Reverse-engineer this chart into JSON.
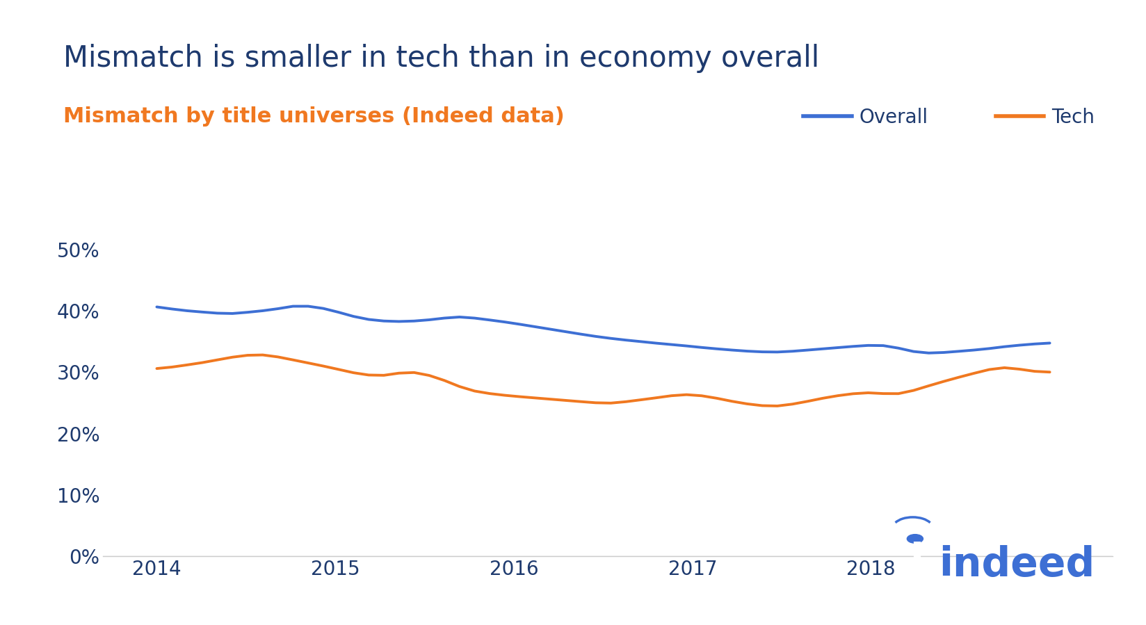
{
  "title": "Mismatch is smaller in tech than in economy overall",
  "subtitle": "Mismatch by title universes (Indeed data)",
  "title_color": "#1e3a6e",
  "subtitle_color": "#f07820",
  "background_color": "#ffffff",
  "overall_color": "#3d6fd4",
  "tech_color": "#f07820",
  "legend_labels": [
    "Overall",
    "Tech"
  ],
  "x_label_years": [
    "2014",
    "2015",
    "2016",
    "2017",
    "2018"
  ],
  "ylim": [
    0,
    0.55
  ],
  "yticks": [
    0.0,
    0.1,
    0.2,
    0.3,
    0.4,
    0.5
  ],
  "overall_y": [
    0.408,
    0.402,
    0.4,
    0.398,
    0.396,
    0.394,
    0.398,
    0.4,
    0.402,
    0.41,
    0.408,
    0.405,
    0.398,
    0.39,
    0.385,
    0.383,
    0.382,
    0.383,
    0.385,
    0.388,
    0.392,
    0.388,
    0.385,
    0.382,
    0.378,
    0.374,
    0.37,
    0.366,
    0.362,
    0.358,
    0.355,
    0.352,
    0.35,
    0.347,
    0.345,
    0.343,
    0.34,
    0.338,
    0.336,
    0.334,
    0.333,
    0.332,
    0.334,
    0.336,
    0.338,
    0.34,
    0.342,
    0.344,
    0.345,
    0.34,
    0.332,
    0.33,
    0.332,
    0.334,
    0.336,
    0.338,
    0.342,
    0.344,
    0.346,
    0.348
  ],
  "tech_y": [
    0.305,
    0.308,
    0.312,
    0.315,
    0.32,
    0.325,
    0.328,
    0.33,
    0.325,
    0.32,
    0.315,
    0.31,
    0.305,
    0.298,
    0.295,
    0.292,
    0.3,
    0.302,
    0.295,
    0.288,
    0.275,
    0.268,
    0.265,
    0.262,
    0.26,
    0.258,
    0.256,
    0.254,
    0.252,
    0.25,
    0.248,
    0.252,
    0.255,
    0.258,
    0.262,
    0.265,
    0.262,
    0.258,
    0.252,
    0.248,
    0.245,
    0.243,
    0.248,
    0.252,
    0.258,
    0.262,
    0.265,
    0.268,
    0.265,
    0.262,
    0.27,
    0.278,
    0.285,
    0.292,
    0.298,
    0.305,
    0.31,
    0.305,
    0.3,
    0.3
  ],
  "indeed_color": "#3d6fd4",
  "legend_fontsize": 20,
  "tick_fontsize": 20,
  "title_fontsize": 30,
  "subtitle_fontsize": 22
}
